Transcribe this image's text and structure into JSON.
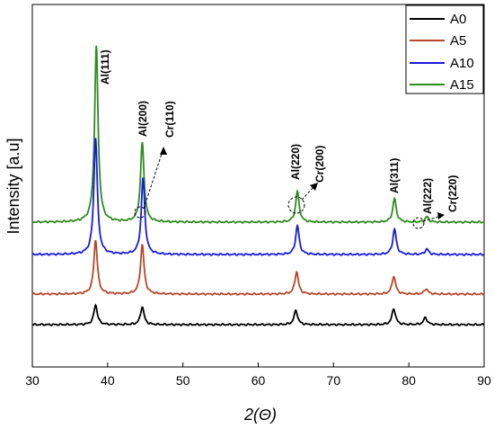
{
  "chart_data": {
    "type": "line",
    "title": "",
    "xlabel": "2(Θ)",
    "ylabel": "Intensity [a.u]",
    "xlim": [
      30,
      90
    ],
    "xticks": [
      "30",
      "40",
      "50",
      "60",
      "70",
      "80",
      "90"
    ],
    "grid": false,
    "legend_position": "top-right",
    "legend": [
      "A0",
      "A5",
      "A10",
      "A15"
    ],
    "series": [
      {
        "name": "A0",
        "color": "#000000",
        "offset": 0,
        "peaks": [
          {
            "x": 38.4,
            "height": 22
          },
          {
            "x": 44.6,
            "height": 20
          },
          {
            "x": 65.0,
            "height": 16
          },
          {
            "x": 78.0,
            "height": 18
          },
          {
            "x": 82.2,
            "height": 8
          }
        ]
      },
      {
        "name": "A5",
        "color": "#b5472a",
        "offset": 34,
        "peaks": [
          {
            "x": 38.4,
            "height": 60
          },
          {
            "x": 44.6,
            "height": 55
          },
          {
            "x": 65.1,
            "height": 25
          },
          {
            "x": 78.0,
            "height": 20
          },
          {
            "x": 82.3,
            "height": 6
          }
        ]
      },
      {
        "name": "A10",
        "color": "#1a1adb",
        "offset": 78,
        "peaks": [
          {
            "x": 38.4,
            "height": 130
          },
          {
            "x": 44.7,
            "height": 85
          },
          {
            "x": 65.2,
            "height": 32
          },
          {
            "x": 78.1,
            "height": 28
          },
          {
            "x": 82.4,
            "height": 6
          }
        ]
      },
      {
        "name": "A15",
        "color": "#2e8b1e",
        "offset": 114,
        "peaks": [
          {
            "x": 38.5,
            "height": 195
          },
          {
            "x": 44.6,
            "height": 88
          },
          {
            "x": 65.2,
            "height": 34
          },
          {
            "x": 78.1,
            "height": 26
          },
          {
            "x": 82.4,
            "height": 6
          }
        ]
      }
    ],
    "annotations": [
      {
        "text": "Al(111)",
        "x": 38.7
      },
      {
        "text": "Al(200)",
        "x": 44.6
      },
      {
        "text": "Cr(110)",
        "x": 47.0
      },
      {
        "text": "Al(220)",
        "x": 65.0
      },
      {
        "text": "Cr(200)",
        "x": 67.5
      },
      {
        "text": "Al(311)",
        "x": 78.3
      },
      {
        "text": "Al(222)",
        "x": 82.5
      },
      {
        "text": "Cr(220)",
        "x": 84.5
      }
    ]
  }
}
